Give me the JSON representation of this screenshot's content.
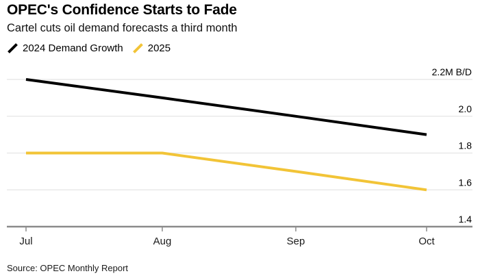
{
  "header": {
    "title": "OPEC's Confidence Starts to Fade",
    "subtitle": "Cartel cuts oil demand forecasts a third month"
  },
  "source_line": "Source: OPEC Monthly Report",
  "colors": {
    "series_2024": "#000000",
    "series_2025": "#F2C437",
    "gridline": "#E4E4E4",
    "axis_line": "#8A8A8A",
    "tick_label": "#000000",
    "background": "#FFFFFF"
  },
  "chart_data": {
    "type": "line",
    "title": "OPEC's Confidence Starts to Fade",
    "subtitle": "Cartel cuts oil demand forecasts a third month",
    "categories": [
      "Jul",
      "Aug",
      "Sep",
      "Oct"
    ],
    "series": [
      {
        "name": "2024 Demand Growth",
        "color": "#000000",
        "values": [
          2.2,
          2.1,
          2.0,
          1.9
        ]
      },
      {
        "name": "2025",
        "color": "#F2C437",
        "values": [
          1.8,
          1.8,
          1.7,
          1.6
        ]
      }
    ],
    "ylabel_unit": "M B/D",
    "ylim": [
      1.4,
      2.2
    ],
    "yticks": [
      {
        "label": "2.2M B/D",
        "value": 2.2
      },
      {
        "label": "2.0",
        "value": 2.0
      },
      {
        "label": "1.8",
        "value": 1.8
      },
      {
        "label": "1.6",
        "value": 1.6
      },
      {
        "label": "1.4",
        "value": 1.4
      }
    ],
    "grid": "horizontal",
    "legend_position": "top-left",
    "source": "Source: OPEC Monthly Report"
  }
}
